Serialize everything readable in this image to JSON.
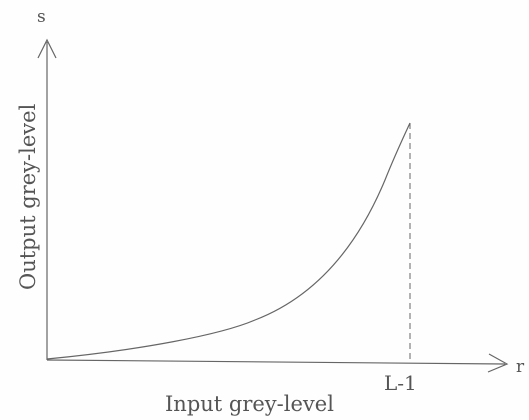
{
  "diagram": {
    "y_axis_symbol": "s",
    "x_axis_symbol": "r",
    "y_axis_label": "Output grey-level",
    "x_axis_label": "Input grey-level",
    "x_tick_label": "L-1",
    "colors": {
      "line": "#666666",
      "text": "#555555",
      "background": "#fefefe"
    }
  }
}
